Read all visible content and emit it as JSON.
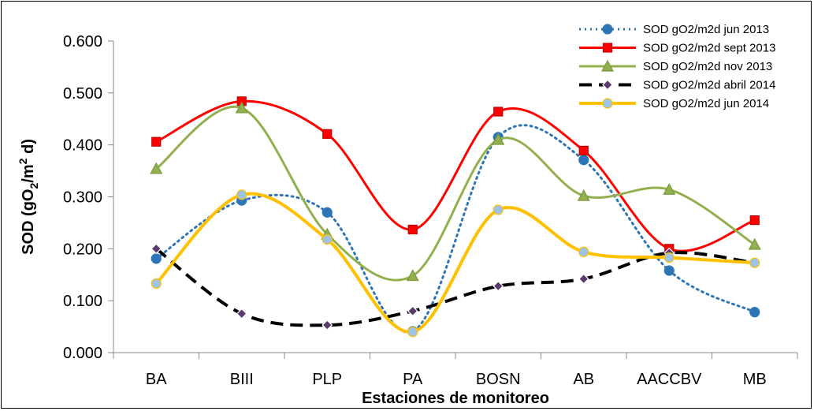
{
  "chart_data": {
    "type": "line",
    "title": "",
    "xlabel": "Estaciones de monitoreo",
    "ylabel": {
      "main": "SOD (gO",
      "sub1": "2",
      "mid": "/m",
      "sup": "2",
      "end": " d)"
    },
    "ylim": [
      0,
      0.6
    ],
    "yticks": [
      "0.000",
      "0.100",
      "0.200",
      "0.300",
      "0.400",
      "0.500",
      "0.600"
    ],
    "ytick_values": [
      0,
      0.1,
      0.2,
      0.3,
      0.4,
      0.5,
      0.6
    ],
    "categories": [
      "BA",
      "BIII",
      "PLP",
      "PA",
      "BOSN",
      "AB",
      "AACCBV",
      "MB"
    ],
    "grid": false,
    "legend_position": "top-right",
    "series": [
      {
        "name": "SOD gO2/m2d jun 2013",
        "values": [
          0.181,
          0.293,
          0.27,
          0.041,
          0.415,
          0.371,
          0.158,
          0.078
        ],
        "color": "#2e75b6",
        "marker_fill": "#2e75b6",
        "marker_stroke": "#2e75b6",
        "marker": "circle",
        "dash": "2,5",
        "width": 3
      },
      {
        "name": "SOD gO2/m2d sept 2013",
        "values": [
          0.406,
          0.484,
          0.421,
          0.237,
          0.464,
          0.389,
          0.2,
          0.255
        ],
        "color": "#ff0000",
        "marker_fill": "#ff0000",
        "marker_stroke": "#c00000",
        "marker": "square",
        "dash": "",
        "width": 3
      },
      {
        "name": "SOD gO2/m2d nov 2013",
        "values": [
          0.354,
          0.471,
          0.228,
          0.148,
          0.41,
          0.302,
          0.314,
          0.208
        ],
        "color": "#92b04e",
        "marker_fill": "#92b04e",
        "marker_stroke": "#7a9a3c",
        "marker": "triangle",
        "dash": "",
        "width": 3
      },
      {
        "name": "SOD gO2/m2d abril 2014",
        "values": [
          0.2,
          0.075,
          0.053,
          0.08,
          0.128,
          0.142,
          0.192,
          0.173
        ],
        "color": "#000000",
        "marker_fill": "#5b3a6e",
        "marker_stroke": "#ffffff",
        "marker": "diamond",
        "dash": "16,9",
        "width": 4
      },
      {
        "name": "SOD gO2/m2d jun 2014",
        "values": [
          0.133,
          0.304,
          0.218,
          0.04,
          0.275,
          0.194,
          0.183,
          0.173
        ],
        "color": "#ffc000",
        "marker_fill": "#9dc3e6",
        "marker_stroke": "#ffc000",
        "marker": "circle",
        "dash": "",
        "width": 4
      }
    ]
  }
}
